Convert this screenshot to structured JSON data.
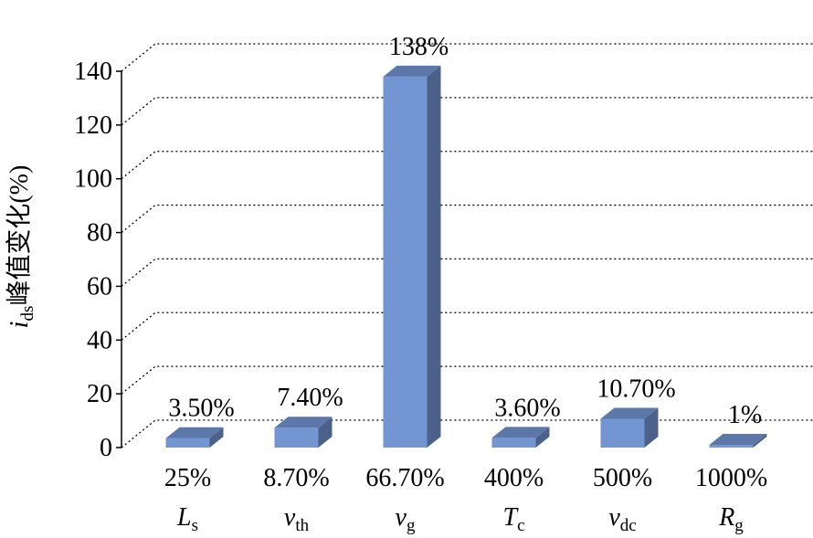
{
  "chart_data": {
    "type": "bar3d",
    "y_label": {
      "main": "i",
      "sub": "ds",
      "rest": "峰值变化(%)"
    },
    "categories": [
      "25%",
      "8.70%",
      "66.70%",
      "400%",
      "500%",
      "1000%"
    ],
    "params": [
      {
        "main": "L",
        "sub": "s"
      },
      {
        "main": "v",
        "sub": "th"
      },
      {
        "main": "v",
        "sub": "g"
      },
      {
        "main": "T",
        "sub": "c"
      },
      {
        "main": "v",
        "sub": "dc"
      },
      {
        "main": "R",
        "sub": "g"
      }
    ],
    "values": [
      3.5,
      7.4,
      138,
      3.6,
      10.7,
      1
    ],
    "value_labels": [
      "3.50%",
      "7.40%",
      "138%",
      "3.60%",
      "10.70%",
      "1%"
    ],
    "color": "#7395d2",
    "ylim": [
      0,
      140
    ],
    "yticks": [
      0,
      20,
      40,
      60,
      80,
      100,
      120,
      140
    ],
    "grid": true
  }
}
